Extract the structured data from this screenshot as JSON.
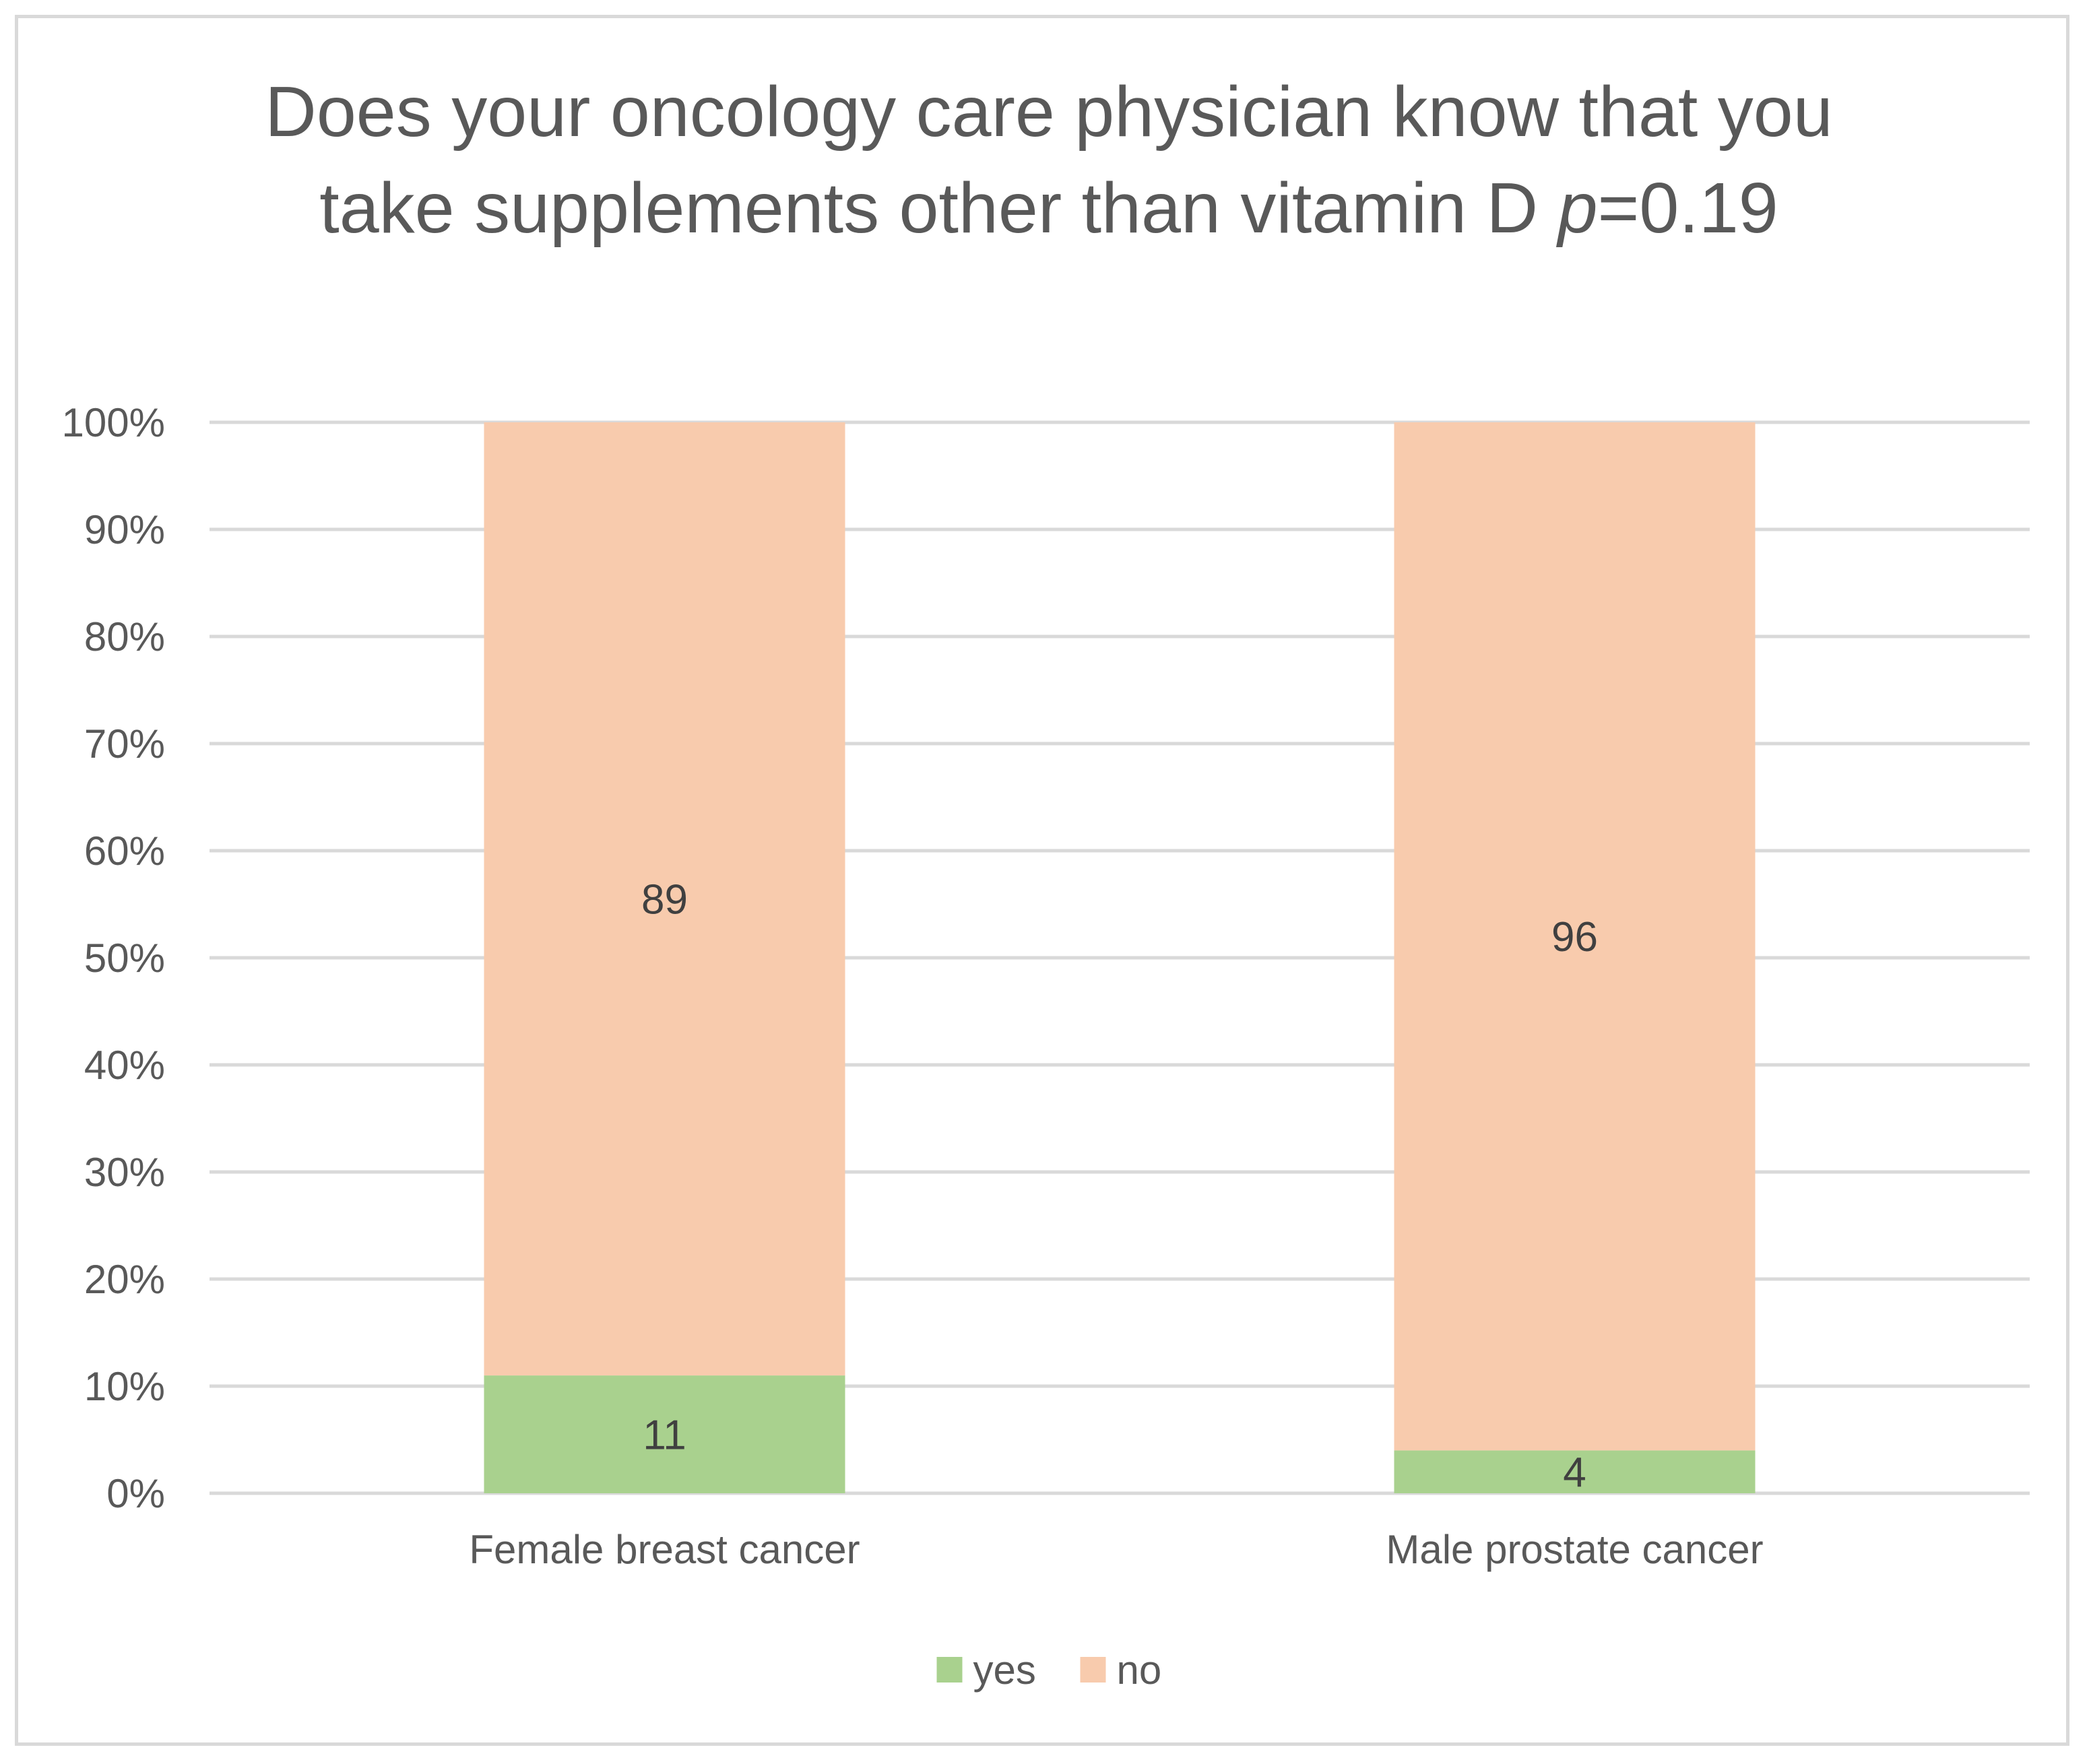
{
  "chart_data": {
    "type": "bar",
    "stacked": true,
    "title_line1": "Does your oncology care physician know that you",
    "title_line2_main": "take supplements other than vitamin D ",
    "title_line2_italic": "p",
    "title_line2_suffix": "=0.19",
    "categories": [
      "Female breast cancer",
      "Male prostate cancer"
    ],
    "series": [
      {
        "name": "yes",
        "values": [
          11,
          4
        ],
        "color": "#a9d18e"
      },
      {
        "name": "no",
        "values": [
          89,
          96
        ],
        "color": "#f8cbad"
      }
    ],
    "ylim": [
      0,
      100
    ],
    "yticks": [
      "0%",
      "10%",
      "20%",
      "30%",
      "40%",
      "50%",
      "60%",
      "70%",
      "80%",
      "90%",
      "100%"
    ],
    "grid": true,
    "gridline_color": "#d9d9d9",
    "legend_position": "bottom",
    "xlabel": "",
    "ylabel": ""
  }
}
